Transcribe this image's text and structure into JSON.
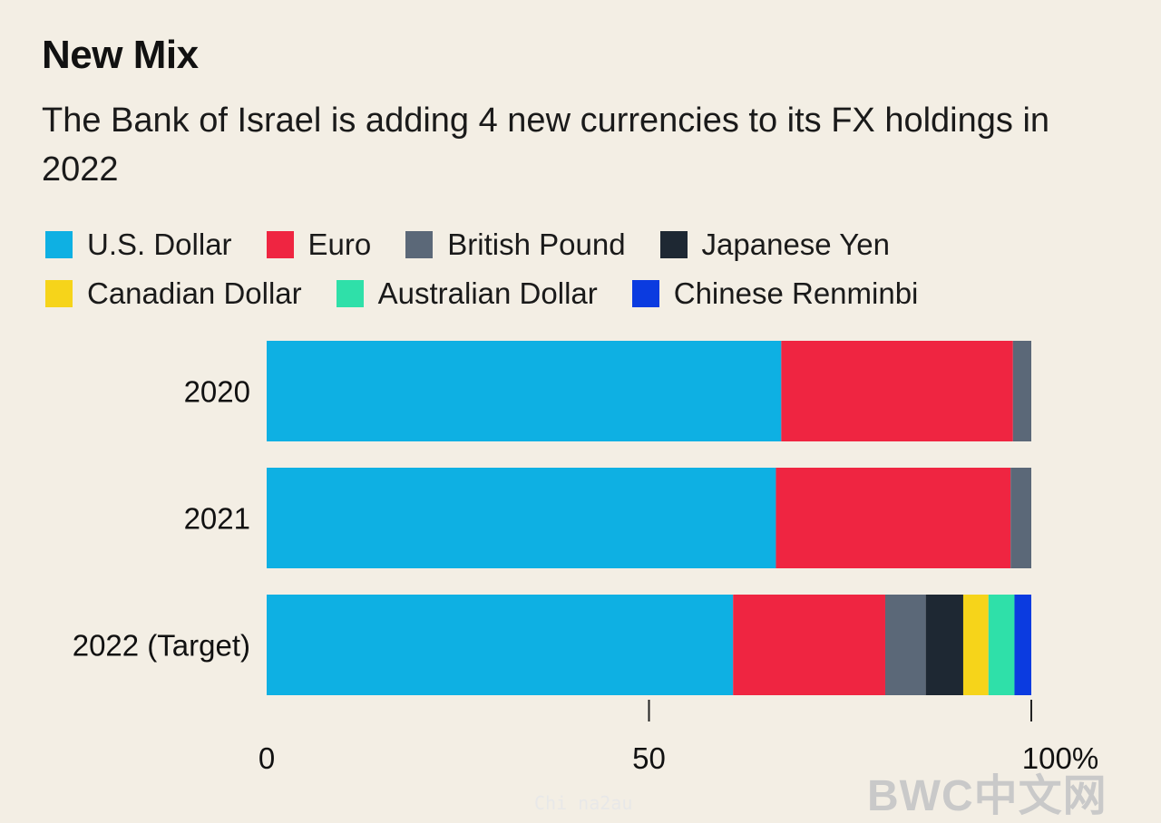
{
  "chart_data": {
    "type": "bar",
    "orientation": "horizontal",
    "stacked": true,
    "title": "New Mix",
    "subtitle": "The Bank of Israel is adding 4 new currencies to its FX holdings in 2022",
    "categories": [
      "2020",
      "2021",
      "2022 (Target)"
    ],
    "series": [
      {
        "name": "U.S. Dollar",
        "color": "#0eb0e3",
        "values": [
          67.3,
          66.6,
          61.0
        ]
      },
      {
        "name": "Euro",
        "color": "#ef2541",
        "values": [
          30.3,
          30.7,
          19.9
        ]
      },
      {
        "name": "British Pound",
        "color": "#5b6878",
        "values": [
          2.4,
          2.7,
          5.3
        ]
      },
      {
        "name": "Japanese Yen",
        "color": "#1e2833",
        "values": [
          0,
          0,
          4.9
        ]
      },
      {
        "name": "Canadian Dollar",
        "color": "#f6d41a",
        "values": [
          0,
          0,
          3.3
        ]
      },
      {
        "name": "Australian Dollar",
        "color": "#2fe0a9",
        "values": [
          0,
          0,
          3.4
        ]
      },
      {
        "name": "Chinese Renminbi",
        "color": "#0b3be0",
        "values": [
          0,
          0,
          2.2
        ]
      }
    ],
    "xlim": [
      0,
      100
    ],
    "xticks": [
      0,
      50,
      100
    ],
    "xtick_labels": [
      "0",
      "50",
      "100%"
    ],
    "legend_position": "top"
  },
  "watermark": {
    "main": "BWC中文网",
    "small": "Chi na2au"
  }
}
